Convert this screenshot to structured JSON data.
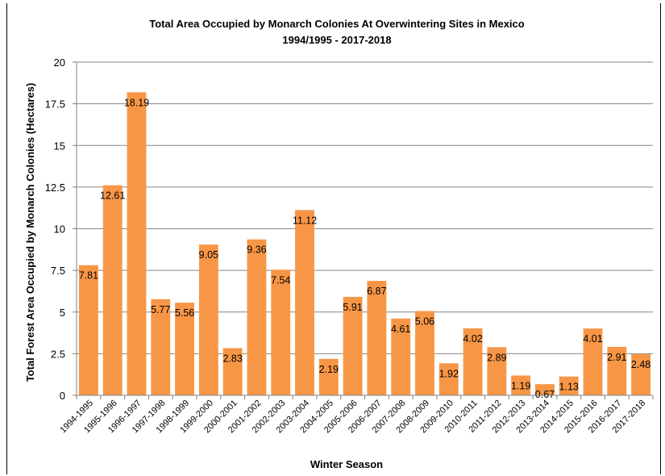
{
  "chart_data": {
    "type": "bar",
    "title": "Total Area Occupied by Monarch Colonies At Overwintering Sites in Mexico",
    "subtitle": "1994/1995 - 2017-2018",
    "xlabel": "Winter Season",
    "ylabel": "Total Forest Area Occupied by Monarch Colonies (Hectares)",
    "ylim": [
      0,
      20
    ],
    "yticks": [
      "0",
      "2.5",
      "5",
      "7.5",
      "10",
      "12.5",
      "15",
      "17.5",
      "20"
    ],
    "grid": true,
    "bar_color": "#F79646",
    "categories": [
      "1994-1995",
      "1995-1996",
      "1996-1997",
      "1997-1998",
      "1998-1999",
      "1999-2000",
      "2000-2001",
      "2001-2002",
      "2002-2003",
      "2003-2004",
      "2004-2005",
      "2005-2006",
      "2006-2007",
      "2007-2008",
      "2008-2009",
      "2009-2010",
      "2010-2011",
      "2011-2012",
      "2012-2013",
      "2013-2014",
      "2014-2015",
      "2015-2016",
      "2016-2017",
      "2017-2018"
    ],
    "values": [
      7.81,
      12.61,
      18.19,
      5.77,
      5.56,
      9.05,
      2.83,
      9.36,
      7.54,
      11.12,
      2.19,
      5.91,
      6.87,
      4.61,
      5.06,
      1.92,
      4.02,
      2.89,
      1.19,
      0.67,
      1.13,
      4.01,
      2.91,
      2.48
    ],
    "data_labels": [
      "7.81",
      "12.61",
      "18.19",
      "5.77",
      "5.56",
      "9.05",
      "2.83",
      "9.36",
      "7.54",
      "11.12",
      "2.19",
      "5.91",
      "6.87",
      "4.61",
      "5.06",
      "1.92",
      "4.02",
      "2.89",
      "1.19",
      "0.67",
      "1.13",
      "4.01",
      "2.91",
      "2.48"
    ]
  }
}
